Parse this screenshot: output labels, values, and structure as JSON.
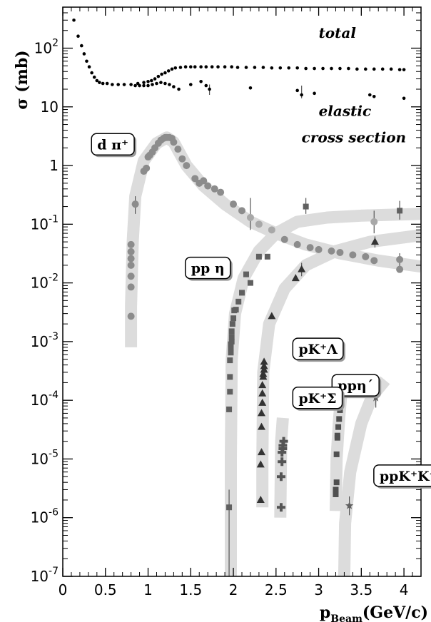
{
  "chart_data": {
    "type": "scatter",
    "xlabel": "p",
    "xlabel_sub": "Beam",
    "xlabel_unit": "(GeV/c)",
    "ylabel": "σ (mb)",
    "xlim": [
      0,
      4.2
    ],
    "ylim": [
      1e-07,
      500
    ],
    "yscale": "log",
    "grid": false,
    "x_ticks": [
      0,
      0.5,
      1,
      1.5,
      2,
      2.5,
      3,
      3.5,
      4
    ],
    "x_tick_labels": [
      "0",
      "0.5",
      "1",
      "1.5",
      "2",
      "2.5",
      "3",
      "3.5",
      "4"
    ],
    "y_ticks": [
      1e-07,
      1e-06,
      1e-05,
      0.0001,
      0.001,
      0.01,
      0.1,
      1,
      10,
      100
    ],
    "y_tick_labels": [
      {
        "base": "10",
        "exp": "-7"
      },
      {
        "base": "10",
        "exp": "-6"
      },
      {
        "base": "10",
        "exp": "-5"
      },
      {
        "base": "10",
        "exp": "-4"
      },
      {
        "base": "10",
        "exp": "-3"
      },
      {
        "base": "10",
        "exp": "-2"
      },
      {
        "base": "10",
        "exp": "-1"
      },
      {
        "base": "1",
        "exp": ""
      },
      {
        "base": "10",
        "exp": ""
      },
      {
        "base": "10",
        "exp": "2"
      }
    ],
    "annotations": [
      {
        "text": "total",
        "x": 3.0,
        "y": 150
      },
      {
        "text": "elastic",
        "x": 3.0,
        "y": 7
      },
      {
        "text": "cross section",
        "x": 2.8,
        "y": 2.5
      }
    ],
    "box_labels": [
      {
        "text": "d π⁺",
        "x": 0.32,
        "y": 2.3
      },
      {
        "text": "pp η",
        "x": 1.42,
        "y": 0.018
      },
      {
        "text": "pK⁺Λ",
        "x": 2.68,
        "y": 0.00075
      },
      {
        "text": "ppη´",
        "x": 3.14,
        "y": 0.00018
      },
      {
        "text": "pK⁺Σ",
        "x": 2.68,
        "y": 0.00011
      },
      {
        "text": "ppK⁺K⁻",
        "x": 3.63,
        "y": 5.2e-06
      }
    ],
    "bands": [
      {
        "name": "d π⁺ band",
        "width": 15,
        "points": [
          [
            0.8,
            0.0008
          ],
          [
            0.8,
            0.004
          ],
          [
            0.82,
            0.05
          ],
          [
            0.85,
            0.3
          ],
          [
            0.95,
            1.2
          ],
          [
            1.1,
            2.4
          ],
          [
            1.22,
            3.0
          ],
          [
            1.3,
            2.5
          ],
          [
            1.45,
            1.0
          ],
          [
            1.65,
            0.45
          ],
          [
            1.9,
            0.22
          ],
          [
            2.2,
            0.11
          ],
          [
            2.5,
            0.07
          ],
          [
            2.85,
            0.045
          ],
          [
            3.25,
            0.032
          ],
          [
            3.7,
            0.024
          ],
          [
            4.2,
            0.019
          ]
        ]
      },
      {
        "name": "pp η band",
        "width": 15,
        "points": [
          [
            1.97,
            1e-07
          ],
          [
            1.97,
            1e-05
          ],
          [
            1.98,
            0.0005
          ],
          [
            2.02,
            0.003
          ],
          [
            2.12,
            0.012
          ],
          [
            2.3,
            0.035
          ],
          [
            2.5,
            0.07
          ],
          [
            2.75,
            0.11
          ],
          [
            3.1,
            0.13
          ],
          [
            3.5,
            0.14
          ],
          [
            4.2,
            0.15
          ]
        ]
      },
      {
        "name": "pK⁺Λ band",
        "width": 15,
        "points": [
          [
            2.34,
            1.5e-06
          ],
          [
            2.34,
            1e-05
          ],
          [
            2.35,
            0.0003
          ],
          [
            2.42,
            0.002
          ],
          [
            2.6,
            0.008
          ],
          [
            2.85,
            0.02
          ],
          [
            3.2,
            0.035
          ],
          [
            3.6,
            0.05
          ],
          [
            4.2,
            0.065
          ]
        ]
      },
      {
        "name": "pK⁺Σ band",
        "width": 15,
        "points": [
          [
            2.55,
            1e-06
          ],
          [
            2.56,
            2e-05
          ],
          [
            2.58,
            5e-05
          ]
        ]
      },
      {
        "name": "ppη´ band",
        "width": 15,
        "points": [
          [
            3.2,
            1.3e-06
          ],
          [
            3.21,
            1e-05
          ],
          [
            3.24,
            5e-05
          ],
          [
            3.27,
            0.00015
          ]
        ]
      },
      {
        "name": "ppK⁺K⁻ band",
        "width": 15,
        "points": [
          [
            3.3,
            1e-07
          ],
          [
            3.31,
            8e-07
          ],
          [
            3.37,
            6e-06
          ],
          [
            3.5,
            4e-05
          ],
          [
            3.63,
            0.00012
          ],
          [
            3.78,
            0.00022
          ]
        ]
      }
    ],
    "series": [
      {
        "name": "total",
        "marker": "dot",
        "x": [
          0.13,
          0.18,
          0.22,
          0.25,
          0.28,
          0.31,
          0.34,
          0.37,
          0.4,
          0.43,
          0.47,
          0.52,
          0.58,
          0.65,
          0.72,
          0.8,
          0.88,
          0.95,
          1.0,
          1.04,
          1.08,
          1.12,
          1.16,
          1.2,
          1.24,
          1.28,
          1.32,
          1.38,
          1.44,
          1.5,
          1.55,
          1.62,
          1.68,
          1.75,
          1.82,
          1.9,
          1.98,
          2.05,
          2.15,
          2.25,
          2.35,
          2.45,
          2.55,
          2.65,
          2.75,
          2.85,
          2.95,
          3.05,
          3.15,
          3.25,
          3.35,
          3.45,
          3.55,
          3.65,
          3.75,
          3.85,
          3.95,
          4.0
        ],
        "y": [
          300,
          160,
          110,
          80,
          60,
          48,
          38,
          32,
          28,
          26,
          25,
          25,
          24,
          24,
          24,
          24,
          25,
          26,
          27,
          28,
          30,
          33,
          36,
          38,
          41,
          44,
          46,
          47,
          48,
          48,
          48,
          48,
          48,
          48,
          48,
          48,
          48,
          47,
          47,
          47,
          47,
          46,
          46,
          46,
          46,
          45,
          45,
          45,
          45,
          45,
          45,
          44,
          44,
          44,
          44,
          44,
          43,
          43
        ]
      },
      {
        "name": "elastic",
        "marker": "dot",
        "x": [
          0.85,
          0.9,
          0.95,
          1.0,
          1.05,
          1.1,
          1.15,
          1.2,
          1.25,
          1.3,
          1.36,
          1.5,
          1.62,
          1.68,
          1.72,
          2.2,
          2.75,
          2.8,
          2.95,
          3.6,
          3.65,
          4.0
        ],
        "y": [
          23,
          23,
          23,
          23,
          24,
          25,
          26,
          25,
          24,
          22,
          20,
          24,
          27,
          23,
          20,
          21,
          19,
          16,
          17,
          16,
          15,
          14
        ]
      },
      {
        "name": "d π⁺",
        "marker": "circle",
        "x": [
          0.8,
          0.8,
          0.8,
          0.8,
          0.8,
          0.8,
          0.8,
          0.85,
          0.95,
          0.98,
          1.0,
          1.02,
          1.05,
          1.08,
          1.12,
          1.15,
          1.18,
          1.2,
          1.22,
          1.25,
          1.28,
          1.3,
          1.35,
          1.4,
          1.45,
          1.55,
          1.6,
          1.65,
          1.7,
          1.78,
          1.85,
          2.0,
          2.1,
          2.2,
          2.3,
          2.45,
          2.6,
          2.75,
          2.9,
          3.0,
          3.15,
          3.25,
          3.4,
          3.55,
          3.65,
          3.65,
          3.95,
          3.95
        ],
        "y": [
          0.0027,
          0.0085,
          0.013,
          0.02,
          0.026,
          0.034,
          0.045,
          0.22,
          0.8,
          0.9,
          1.4,
          1.5,
          1.7,
          2.0,
          2.4,
          2.7,
          2.9,
          3.0,
          3.0,
          3.0,
          2.9,
          2.5,
          1.9,
          1.3,
          1.0,
          0.6,
          0.5,
          0.55,
          0.45,
          0.4,
          0.35,
          0.22,
          0.17,
          0.13,
          0.1,
          0.08,
          0.055,
          0.045,
          0.04,
          0.037,
          0.035,
          0.033,
          0.03,
          0.028,
          0.11,
          0.024,
          0.025,
          0.017
        ]
      },
      {
        "name": "pp η",
        "marker": "square",
        "x": [
          1.95,
          1.95,
          1.96,
          1.96,
          1.96,
          1.97,
          1.97,
          1.97,
          1.98,
          1.98,
          1.98,
          1.99,
          2.0,
          2.01,
          2.03,
          2.06,
          2.1,
          2.15,
          2.2,
          2.3,
          2.4,
          2.85,
          3.95
        ],
        "y": [
          1.5e-06,
          7e-05,
          0.00014,
          0.00025,
          0.00048,
          0.00065,
          0.00078,
          0.0009,
          0.001,
          0.0012,
          0.0015,
          0.002,
          0.0025,
          0.0034,
          0.0035,
          0.0048,
          0.0068,
          0.014,
          0.01,
          0.028,
          0.028,
          0.2,
          0.17
        ]
      },
      {
        "name": "pK⁺Λ",
        "marker": "triangle",
        "x": [
          2.32,
          2.32,
          2.33,
          2.33,
          2.33,
          2.34,
          2.34,
          2.34,
          2.35,
          2.35,
          2.36,
          2.36,
          2.36,
          2.45,
          2.73,
          2.8,
          3.66
        ],
        "y": [
          2e-06,
          8e-06,
          1.3e-05,
          3.5e-05,
          6e-05,
          9e-05,
          0.00013,
          0.00018,
          0.00025,
          0.00028,
          0.00033,
          0.00038,
          0.00045,
          0.0027,
          0.012,
          0.017,
          0.05
        ]
      },
      {
        "name": "pK⁺Σ",
        "marker": "cross",
        "x": [
          2.56,
          2.56,
          2.57,
          2.57,
          2.58,
          2.58,
          2.59
        ],
        "y": [
          1.5e-06,
          5e-06,
          9e-06,
          1.3e-05,
          1.5e-05,
          1.7e-05,
          2e-05
        ]
      },
      {
        "name": "ppη´",
        "marker": "square",
        "x": [
          3.2,
          3.2,
          3.21,
          3.21,
          3.22,
          3.22,
          3.23,
          3.24,
          3.25,
          3.26
        ],
        "y": [
          2.5e-06,
          3e-06,
          4e-06,
          1.2e-05,
          2.3e-05,
          2.5e-05,
          3.5e-05,
          4.8e-05,
          6.8e-05,
          0.0001
        ]
      },
      {
        "name": "ppK⁺K⁻",
        "marker": "star",
        "x": [
          3.36,
          3.67
        ],
        "y": [
          1.6e-06,
          0.00011
        ]
      }
    ],
    "error_bars": [
      {
        "x": 0.85,
        "lo": 0.15,
        "hi": 0.3
      },
      {
        "x": 1.72,
        "lo": 16,
        "hi": 24
      },
      {
        "x": 1.95,
        "lo": 1e-07,
        "hi": 3e-06
      },
      {
        "x": 2.2,
        "lo": 0.08,
        "hi": 0.28
      },
      {
        "x": 2.8,
        "lo": 14,
        "hi": 23
      },
      {
        "x": 2.85,
        "lo": 0.15,
        "hi": 0.28
      },
      {
        "x": 2.8,
        "lo": 0.013,
        "hi": 0.022
      },
      {
        "x": 3.36,
        "lo": 1.1e-06,
        "hi": 2.3e-06
      },
      {
        "x": 3.65,
        "lo": 0.07,
        "hi": 0.17
      },
      {
        "x": 3.67,
        "lo": 7.5e-05,
        "hi": 0.00016
      },
      {
        "x": 3.66,
        "lo": 0.04,
        "hi": 0.062
      },
      {
        "x": 3.95,
        "lo": 0.12,
        "hi": 0.25
      },
      {
        "x": 3.95,
        "lo": 0.018,
        "hi": 0.032
      }
    ],
    "colors": {
      "band": "#dcdcdc",
      "total": "#000000",
      "elastic": "#000000",
      "d_pi": "#8c8c8c",
      "pp_eta": "#606060",
      "pk_lambda": "#333333",
      "pk_sigma": "#555555",
      "pp_eta_prime": "#505050",
      "ppkk": "#606060",
      "light_marker": "#a8a8a8"
    }
  }
}
